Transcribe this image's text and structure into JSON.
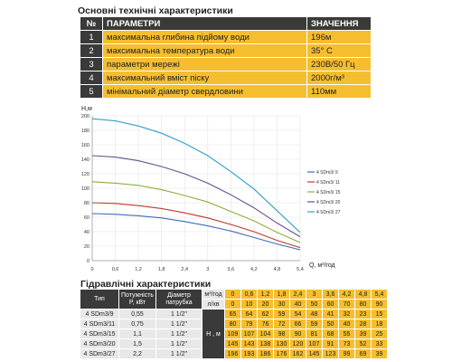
{
  "title_main": "Основні технічні характеристики",
  "spec": {
    "header": [
      "№",
      "ПАРАМЕТРИ",
      "ЗНАЧЕННЯ"
    ],
    "rows": [
      {
        "n": "1",
        "param": "максимальна глибина підйому води",
        "value": "196м"
      },
      {
        "n": "2",
        "param": "максимальна температура води",
        "value": "35° С"
      },
      {
        "n": "3",
        "param": "параметри мережі",
        "value": "230В/50 Гц"
      },
      {
        "n": "4",
        "param": "максимальний вміст піску",
        "value": "2000г/м³"
      },
      {
        "n": "5",
        "param": "мінімальний діаметр свердловини",
        "value": "110мм"
      }
    ]
  },
  "chart_data": {
    "type": "line",
    "ylabel": "H,м",
    "xlabel": "Q, м³/год",
    "xlim": [
      0,
      5.4
    ],
    "ylim": [
      0,
      200
    ],
    "xticks": [
      "0",
      "0,6",
      "1,2",
      "1,8",
      "2,4",
      "3",
      "3,6",
      "4,2",
      "4,8",
      "5,4"
    ],
    "yticks": [
      "0",
      "20",
      "40",
      "60",
      "80",
      "100",
      "120",
      "140",
      "160",
      "180",
      "200"
    ],
    "x": [
      0,
      0.6,
      1.2,
      1.8,
      2.4,
      3,
      3.6,
      4.2,
      4.8,
      5.4
    ],
    "grid": true,
    "legend_position": "right",
    "series": [
      {
        "name": "4 SDm3/ 9",
        "color": "#3f6db3",
        "values": [
          65,
          64,
          62,
          59,
          54,
          48,
          41,
          32,
          23,
          15
        ]
      },
      {
        "name": "4 SDm3/ 11",
        "color": "#c0392b",
        "values": [
          80,
          79,
          76,
          72,
          66,
          59,
          50,
          40,
          28,
          18
        ]
      },
      {
        "name": "4 SDm3/ 15",
        "color": "#8db03c",
        "values": [
          109,
          107,
          104,
          98,
          90,
          81,
          68,
          55,
          39,
          25
        ]
      },
      {
        "name": "4 SDm3/ 20",
        "color": "#6a4c93",
        "values": [
          145,
          143,
          138,
          130,
          120,
          107,
          91,
          73,
          52,
          33
        ]
      },
      {
        "name": "4 SDm3/ 27",
        "color": "#2e9fc7",
        "values": [
          196,
          193,
          186,
          176,
          162,
          145,
          123,
          99,
          69,
          39
        ]
      }
    ]
  },
  "title_hyd": "Гідравлічні характеристики",
  "hyd": {
    "col_type": "Тип",
    "col_power": "Потужність P, кВт",
    "col_diam": "Діаметр патрубка",
    "unit_q1": "м³/год",
    "unit_q2": "л/хв",
    "h_label": "Н , м",
    "q_m3": [
      "0",
      "0,6",
      "1,2",
      "1,8",
      "2,4",
      "3",
      "3,6",
      "4,2",
      "4,8",
      "5,4"
    ],
    "q_l": [
      "0",
      "10",
      "20",
      "30",
      "40",
      "50",
      "60",
      "70",
      "80",
      "90"
    ],
    "rows": [
      {
        "type": "4 SDm3/9",
        "power": "0,55",
        "diam": "1 1/2\"",
        "h": [
          "65",
          "64",
          "62",
          "59",
          "54",
          "48",
          "41",
          "32",
          "23",
          "15"
        ]
      },
      {
        "type": "4 SDm3/11",
        "power": "0,75",
        "diam": "1 1/2\"",
        "h": [
          "80",
          "79",
          "76",
          "72",
          "66",
          "59",
          "50",
          "40",
          "28",
          "18"
        ]
      },
      {
        "type": "4 SDm3/15",
        "power": "1,1",
        "diam": "1 1/2\"",
        "h": [
          "109",
          "107",
          "104",
          "98",
          "90",
          "81",
          "68",
          "55",
          "39",
          "25"
        ]
      },
      {
        "type": "4 SDm3/20",
        "power": "1,5",
        "diam": "1 1/2\"",
        "h": [
          "145",
          "143",
          "138",
          "130",
          "120",
          "107",
          "91",
          "73",
          "52",
          "33"
        ]
      },
      {
        "type": "4 SDm3/27",
        "power": "2,2",
        "diam": "1 1/2\"",
        "h": [
          "196",
          "193",
          "186",
          "176",
          "162",
          "145",
          "123",
          "99",
          "69",
          "39"
        ]
      }
    ]
  }
}
